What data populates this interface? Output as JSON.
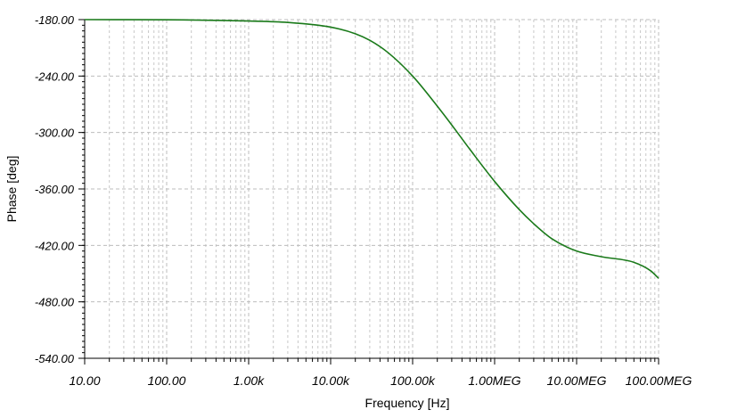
{
  "chart_data": {
    "type": "line",
    "title": "",
    "xlabel": "Frequency [Hz]",
    "ylabel": "Phase [deg]",
    "x_scale": "log",
    "xlim": [
      10,
      100000000
    ],
    "ylim": [
      -540,
      -180
    ],
    "grid": true,
    "x_tick_values": [
      10,
      100,
      1000,
      10000,
      100000,
      1000000,
      10000000,
      100000000
    ],
    "x_tick_labels": [
      "10.00",
      "100.00",
      "1.00k",
      "10.00k",
      "100.00k",
      "1.00MEG",
      "10.00MEG",
      "100.00MEG"
    ],
    "y_tick_values": [
      -180,
      -240,
      -300,
      -360,
      -420,
      -480,
      -540
    ],
    "y_tick_labels": [
      "-180.00",
      "-240.00",
      "-300.00",
      "-360.00",
      "-420.00",
      "-480.00",
      "-540.00"
    ],
    "series": [
      {
        "color": "#1a7a1a",
        "x": [
          10,
          100,
          1000,
          3000,
          10000,
          20000,
          30000,
          50000,
          100000,
          200000,
          300000,
          500000,
          1000000,
          2000000,
          3000000,
          5000000,
          10000000,
          20000000,
          50000000,
          80000000,
          100000000
        ],
        "y": [
          -180,
          -180.2,
          -181.5,
          -183,
          -188,
          -195,
          -202,
          -215,
          -240,
          -272,
          -292,
          -318,
          -352,
          -382,
          -397,
          -413,
          -426,
          -432,
          -438,
          -447,
          -455
        ]
      }
    ]
  }
}
